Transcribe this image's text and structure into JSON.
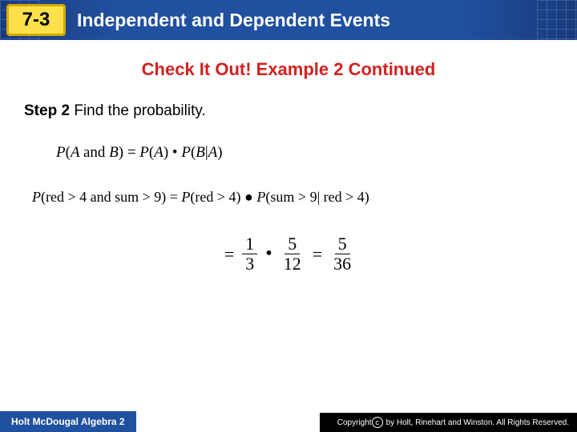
{
  "header": {
    "badge": "7-3",
    "title": "Independent and Dependent Events",
    "badge_bg": "#ffe04a",
    "badge_border": "#d4aa00",
    "bar_color": "#2050a0"
  },
  "subtitle": "Check It Out! Example 2 Continued",
  "subtitle_color": "#d42020",
  "step": {
    "label": "Step 2",
    "text": "Find the probability."
  },
  "formula_general": "P(A and B) = P(A) • P(B|A)",
  "formula_applied": "P(red > 4 and sum > 9) = P(red > 4) ● P(sum > 9| red > 4)",
  "calc": {
    "frac1": {
      "num": "1",
      "den": "3"
    },
    "frac2": {
      "num": "5",
      "den": "12"
    },
    "result": {
      "num": "5",
      "den": "36"
    }
  },
  "footer": {
    "left": "Holt McDougal Algebra 2",
    "right": "by Holt, Rinehart and Winston. All Rights Reserved.",
    "copyright": "Copyright"
  }
}
